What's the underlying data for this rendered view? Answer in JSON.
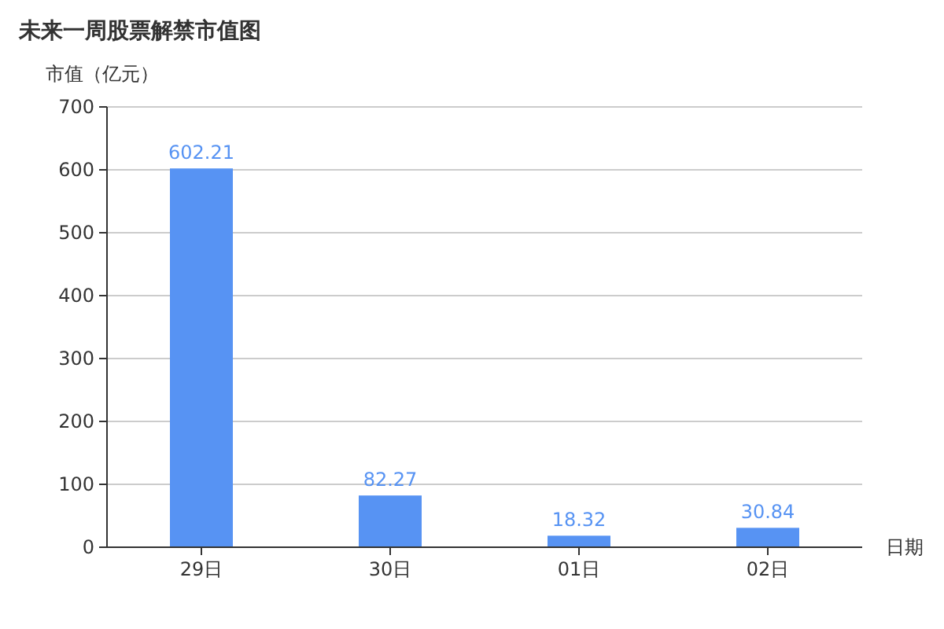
{
  "chart_data": {
    "type": "bar",
    "title": "未来一周股票解禁市值图",
    "ylabel": "市值（亿元）",
    "xlabel": "日期",
    "categories": [
      "29日",
      "30日",
      "01日",
      "02日"
    ],
    "values": [
      602.21,
      82.27,
      18.32,
      30.84
    ],
    "color": "#5793f3",
    "ylim": [
      0,
      700
    ],
    "yticks": [
      0,
      100,
      200,
      300,
      400,
      500,
      600,
      700
    ],
    "grid": "y",
    "data_labels": true
  }
}
